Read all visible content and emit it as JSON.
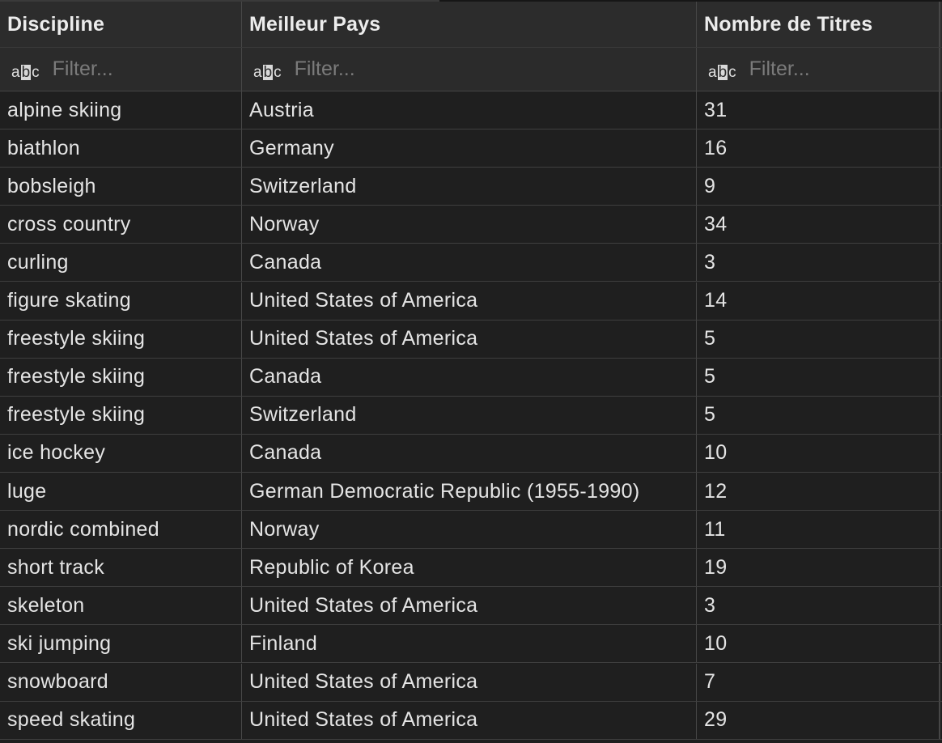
{
  "columns": [
    {
      "label": "Discipline",
      "filter_placeholder": "Filter...",
      "type_icon": "abc-text-type-icon"
    },
    {
      "label": "Meilleur Pays",
      "filter_placeholder": "Filter...",
      "type_icon": "abc-text-type-icon"
    },
    {
      "label": "Nombre de Titres",
      "filter_placeholder": "Filter...",
      "type_icon": "abc-text-type-icon"
    }
  ],
  "rows": [
    {
      "discipline": "alpine skiing",
      "country": "Austria",
      "titles": "31"
    },
    {
      "discipline": "biathlon",
      "country": "Germany",
      "titles": "16"
    },
    {
      "discipline": "bobsleigh",
      "country": "Switzerland",
      "titles": "9"
    },
    {
      "discipline": "cross country",
      "country": "Norway",
      "titles": "34"
    },
    {
      "discipline": "curling",
      "country": "Canada",
      "titles": "3"
    },
    {
      "discipline": "figure skating",
      "country": "United States of America",
      "titles": "14"
    },
    {
      "discipline": "freestyle skiing",
      "country": "United States of America",
      "titles": "5"
    },
    {
      "discipline": "freestyle skiing",
      "country": "Canada",
      "titles": "5"
    },
    {
      "discipline": "freestyle skiing",
      "country": "Switzerland",
      "titles": "5"
    },
    {
      "discipline": "ice hockey",
      "country": "Canada",
      "titles": "10"
    },
    {
      "discipline": "luge",
      "country": "German Democratic Republic (1955-1990)",
      "titles": "12"
    },
    {
      "discipline": "nordic combined",
      "country": "Norway",
      "titles": "11"
    },
    {
      "discipline": "short track",
      "country": "Republic of Korea",
      "titles": "19"
    },
    {
      "discipline": "skeleton",
      "country": "United States of America",
      "titles": "3"
    },
    {
      "discipline": "ski jumping",
      "country": "Finland",
      "titles": "10"
    },
    {
      "discipline": "snowboard",
      "country": "United States of America",
      "titles": "7"
    },
    {
      "discipline": "speed skating",
      "country": "United States of America",
      "titles": "29"
    }
  ],
  "colors": {
    "background": "#1e1e1e",
    "header_background": "#2c2c2c",
    "grid_line": "#474747",
    "text": "#e4e4e4",
    "placeholder": "#7b7b7b"
  }
}
